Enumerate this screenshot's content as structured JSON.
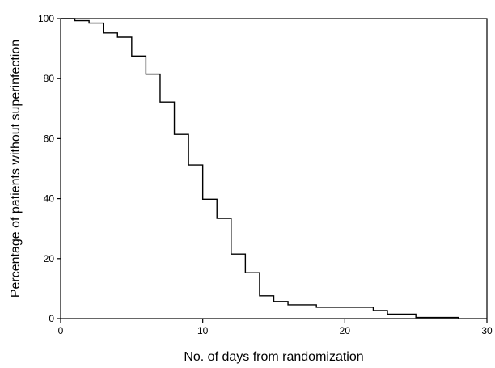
{
  "chart_data": {
    "type": "line",
    "title": "",
    "xlabel": "No. of days from randomization",
    "ylabel": "Percentage of patients without superinfection",
    "xlim": [
      0,
      30
    ],
    "ylim": [
      0,
      100
    ],
    "x_ticks": [
      0,
      10,
      20,
      30
    ],
    "y_ticks": [
      0,
      20,
      40,
      60,
      80,
      100
    ],
    "grid": false,
    "legend": "none",
    "line_shape": "step",
    "series": [
      {
        "x": [
          0,
          1,
          2,
          3,
          4,
          5,
          6,
          7,
          8,
          9,
          10,
          11,
          12,
          13,
          14,
          15,
          16,
          18,
          22,
          23,
          25,
          28
        ],
        "y": [
          100,
          99.3,
          98.5,
          95.2,
          93.8,
          87.5,
          81.5,
          72.2,
          61.4,
          51.2,
          39.8,
          33.4,
          21.5,
          15.3,
          7.6,
          5.7,
          4.6,
          3.8,
          2.7,
          1.5,
          0.4,
          0
        ]
      }
    ]
  }
}
